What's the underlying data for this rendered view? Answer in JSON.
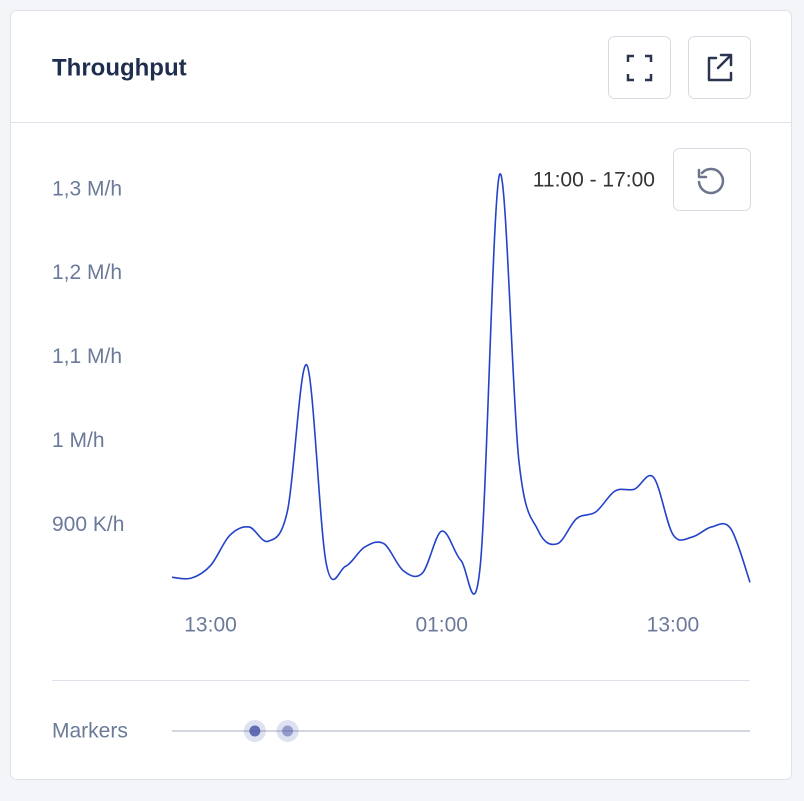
{
  "header": {
    "title": "Throughput"
  },
  "chart_data": {
    "type": "line",
    "range_label": "11:00 - 17:00",
    "x": [
      0,
      1,
      2,
      3,
      4,
      5,
      6,
      7,
      8,
      9,
      10,
      11,
      12,
      13,
      14,
      15,
      16,
      17,
      18,
      19,
      20,
      21,
      22,
      23,
      24,
      25,
      26,
      27,
      28,
      29,
      30
    ],
    "series": [
      {
        "color": "#2443c9",
        "values": [
          838000,
          837000,
          852000,
          888000,
          898000,
          881000,
          918000,
          1091000,
          855000,
          851000,
          874000,
          878000,
          846000,
          843000,
          893000,
          858000,
          852000,
          1318000,
          978000,
          894000,
          878000,
          908000,
          916000,
          941000,
          943000,
          957000,
          889000,
          886000,
          898000,
          896000,
          832000
        ]
      }
    ],
    "xlim": [
      0,
      30
    ],
    "xticks": [
      {
        "value": 2,
        "label": "13:00"
      },
      {
        "value": 14,
        "label": "01:00"
      },
      {
        "value": 26,
        "label": "13:00"
      }
    ],
    "ylim": [
      830000,
      1320000
    ],
    "yticks": [
      {
        "value": 900000,
        "label": "900 K/h"
      },
      {
        "value": 1000000,
        "label": "1 M/h"
      },
      {
        "value": 1100000,
        "label": "1,1 M/h"
      },
      {
        "value": 1200000,
        "label": "1,2 M/h"
      },
      {
        "value": 1300000,
        "label": "1,3 M/h"
      }
    ]
  },
  "markers": {
    "label": "Markers",
    "x": [
      4.3,
      6.0
    ]
  }
}
